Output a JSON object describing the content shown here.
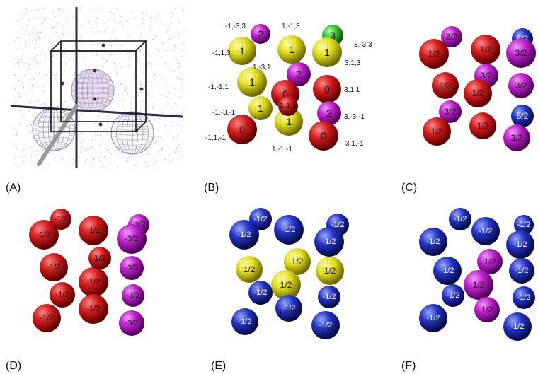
{
  "panels": {
    "A": {
      "label": "(A)"
    },
    "B": {
      "label": "(B)",
      "spheres": [
        {
          "t": "2",
          "c": "magenta"
        },
        {
          "t": "1",
          "c": "yellow"
        },
        {
          "t": "3",
          "c": "green"
        },
        {
          "t": "1",
          "c": "yellow"
        },
        {
          "t": "1",
          "c": "yellow"
        },
        {
          "t": "2",
          "c": "magenta"
        },
        {
          "t": "1",
          "c": "yellow"
        },
        {
          "t": "0",
          "c": "red"
        },
        {
          "t": "0",
          "c": "red"
        },
        {
          "t": "1",
          "c": "yellow"
        },
        {
          "t": "1",
          "c": "yellow"
        },
        {
          "t": "1,1,1",
          "c": "red"
        },
        {
          "t": "2",
          "c": "magenta"
        },
        {
          "t": "0",
          "c": "red"
        },
        {
          "t": "0",
          "c": "red"
        },
        {
          "t": "1",
          "c": "yellow"
        }
      ],
      "coords": [
        "-1,-3,3",
        "1,-1,3",
        "3,-3,3",
        "-1,1,3",
        "3,1,3",
        "1,-3,1",
        "-1,-1,1",
        "3,1,1",
        "-1,-3,-1",
        "3,-3,-1",
        "-1,1,-1",
        "1,-1,-1",
        "3,1,-1"
      ]
    },
    "C": {
      "label": "(C)",
      "spheres": [
        {
          "t": "3/2",
          "c": "magenta"
        },
        {
          "t": "5/2",
          "c": "blue"
        },
        {
          "t": "1/2",
          "c": "red"
        },
        {
          "t": "1/2",
          "c": "red"
        },
        {
          "t": "3/2",
          "c": "magenta"
        },
        {
          "t": "3/2",
          "c": "magenta"
        },
        {
          "t": "1/2",
          "c": "red"
        },
        {
          "t": "3/2",
          "c": "magenta"
        },
        {
          "t": "1/2",
          "c": "red"
        },
        {
          "t": "3/2",
          "c": "magenta"
        },
        {
          "t": "5/2",
          "c": "blue"
        },
        {
          "t": "1/2",
          "c": "red"
        },
        {
          "t": "1/2",
          "c": "red"
        },
        {
          "t": "3/2",
          "c": "magenta"
        }
      ]
    },
    "D": {
      "label": "(D)",
      "spheres": [
        {
          "t": "-1/2",
          "c": "red"
        },
        {
          "t": "-3/2",
          "c": "magenta"
        },
        {
          "t": "-1/2",
          "c": "red"
        },
        {
          "t": "-1/2",
          "c": "red"
        },
        {
          "t": "-3/2",
          "c": "magenta"
        },
        {
          "t": "-1/2",
          "c": "red"
        },
        {
          "t": "-1/2",
          "c": "red"
        },
        {
          "t": "-3/2",
          "c": "magenta"
        },
        {
          "t": "-1/2",
          "c": "red"
        },
        {
          "t": "1/2",
          "c": "red"
        },
        {
          "t": "-3/2",
          "c": "magenta"
        },
        {
          "t": "-1/2",
          "c": "red"
        },
        {
          "t": "-1/2",
          "c": "red"
        },
        {
          "t": "-3/2",
          "c": "magenta"
        }
      ]
    },
    "E": {
      "label": "(E)",
      "spheres": [
        {
          "t": "-1/2",
          "c": "blue"
        },
        {
          "t": "-1/2",
          "c": "blue"
        },
        {
          "t": "-1/2",
          "c": "blue"
        },
        {
          "t": "-1/2",
          "c": "blue"
        },
        {
          "t": "-1/2",
          "c": "blue"
        },
        {
          "t": "1/2",
          "c": "yellow"
        },
        {
          "t": "1/2",
          "c": "yellow"
        },
        {
          "t": "1/2",
          "c": "yellow"
        },
        {
          "t": "-1/2",
          "c": "blue"
        },
        {
          "t": "1/2",
          "c": "yellow"
        },
        {
          "t": "-1/2",
          "c": "blue"
        },
        {
          "t": "-1/2",
          "c": "blue"
        },
        {
          "t": "-1/2",
          "c": "blue"
        },
        {
          "t": "-1/2",
          "c": "blue"
        }
      ]
    },
    "F": {
      "label": "(F)",
      "spheres": [
        {
          "t": "-1/2",
          "c": "blue"
        },
        {
          "t": "-1/2",
          "c": "blue"
        },
        {
          "t": "-1/2",
          "c": "blue"
        },
        {
          "t": "-1/2",
          "c": "blue"
        },
        {
          "t": "-1/2",
          "c": "blue"
        },
        {
          "t": "-1/2",
          "c": "blue"
        },
        {
          "t": "1/2",
          "c": "magenta"
        },
        {
          "t": "-1/2",
          "c": "blue"
        },
        {
          "t": "-1/2",
          "c": "blue"
        },
        {
          "t": "1/2",
          "c": "magenta"
        },
        {
          "t": "-1/2",
          "c": "blue"
        },
        {
          "t": "-1/2",
          "c": "blue"
        },
        {
          "t": "1/2",
          "c": "magenta"
        },
        {
          "t": "-1/2",
          "c": "blue"
        }
      ]
    }
  },
  "colors": {
    "red": "#d41a1a",
    "yellow": "#e6e21e",
    "magenta": "#c21fd0",
    "green": "#2fcf2a",
    "blue": "#2233c8"
  }
}
